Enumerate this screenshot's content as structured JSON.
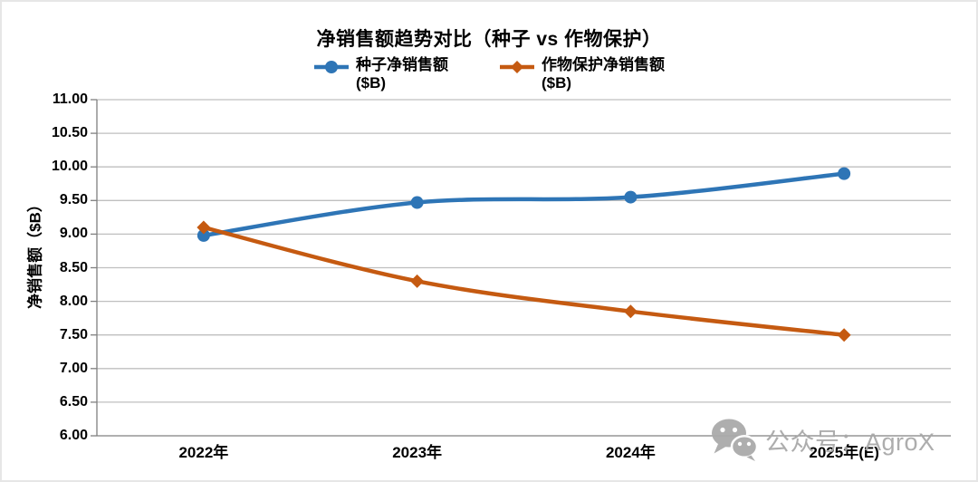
{
  "chart_data": {
    "type": "line",
    "title": "净销售额趋势对比（种子 vs 作物保护）",
    "categories": [
      "2022年",
      "2023年",
      "2024年",
      "2025年(E)"
    ],
    "series": [
      {
        "name": "种子净销售额",
        "unit": "($B)",
        "values": [
          8.98,
          9.47,
          9.55,
          9.9
        ],
        "color": "#2E75B6",
        "marker": "circle"
      },
      {
        "name": "作物保护净销售额",
        "unit": "($B)",
        "values": [
          9.1,
          8.3,
          7.85,
          7.5
        ],
        "color": "#C55A11",
        "marker": "diamond"
      }
    ],
    "xlabel": "",
    "ylabel": "净销售额（$B）",
    "ylim": [
      6.0,
      11.0
    ],
    "ytick_step": 0.5,
    "ytick_format_decimals": 2,
    "grid": true,
    "gridline_color": "#BFBFBF",
    "axis_line_color": "#808080",
    "legend_position": "top",
    "line_style": "smooth"
  },
  "watermark": {
    "icon": "wechat-icon",
    "text": "公众号：AgroX",
    "color": "#A9A9A9"
  }
}
